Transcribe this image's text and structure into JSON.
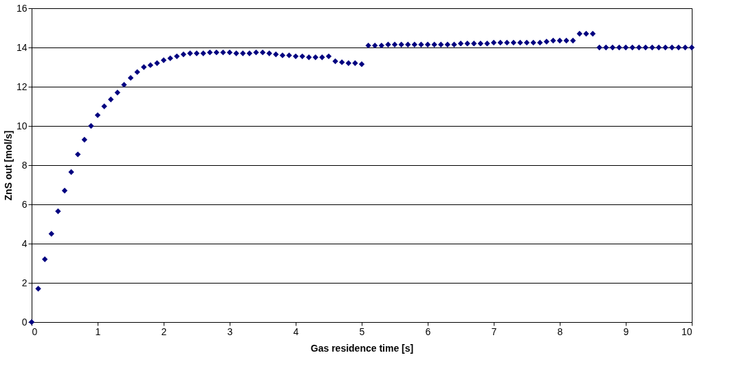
{
  "chart_data": {
    "type": "scatter",
    "xlabel": "Gas residence time [s]",
    "ylabel": "ZnS out  [mol/s]",
    "x": [
      0,
      0.1,
      0.2,
      0.3,
      0.4,
      0.5,
      0.6,
      0.7,
      0.8,
      0.9,
      1.0,
      1.1,
      1.2,
      1.3,
      1.4,
      1.5,
      1.6,
      1.7,
      1.8,
      1.9,
      2.0,
      2.1,
      2.2,
      2.3,
      2.4,
      2.5,
      2.6,
      2.7,
      2.8,
      2.9,
      3.0,
      3.1,
      3.2,
      3.3,
      3.4,
      3.5,
      3.6,
      3.7,
      3.8,
      3.9,
      4.0,
      4.1,
      4.2,
      4.3,
      4.4,
      4.5,
      4.6,
      4.7,
      4.8,
      4.9,
      5.0,
      5.1,
      5.2,
      5.3,
      5.4,
      5.5,
      5.6,
      5.7,
      5.8,
      5.9,
      6.0,
      6.1,
      6.2,
      6.3,
      6.4,
      6.5,
      6.6,
      6.7,
      6.8,
      6.9,
      7.0,
      7.1,
      7.2,
      7.3,
      7.4,
      7.5,
      7.6,
      7.7,
      7.8,
      7.9,
      8.0,
      8.1,
      8.2,
      8.3,
      8.4,
      8.5,
      8.6,
      8.7,
      8.8,
      8.9,
      9.0,
      9.1,
      9.2,
      9.3,
      9.4,
      9.5,
      9.6,
      9.7,
      9.8,
      9.9,
      10.0
    ],
    "series": [
      {
        "color": "#000080",
        "values": [
          0,
          1.7,
          3.2,
          4.5,
          5.65,
          6.7,
          7.65,
          8.55,
          9.3,
          10.0,
          10.55,
          11.0,
          11.35,
          11.7,
          12.1,
          12.45,
          12.75,
          13.0,
          13.1,
          13.2,
          13.35,
          13.45,
          13.55,
          13.65,
          13.7,
          13.7,
          13.7,
          13.75,
          13.75,
          13.75,
          13.75,
          13.7,
          13.7,
          13.7,
          13.75,
          13.75,
          13.7,
          13.65,
          13.6,
          13.6,
          13.55,
          13.55,
          13.5,
          13.5,
          13.5,
          13.55,
          13.3,
          13.25,
          13.2,
          13.2,
          13.15,
          14.1,
          14.1,
          14.1,
          14.15,
          14.15,
          14.15,
          14.15,
          14.15,
          14.15,
          14.15,
          14.15,
          14.15,
          14.15,
          14.15,
          14.2,
          14.2,
          14.2,
          14.2,
          14.2,
          14.25,
          14.25,
          14.25,
          14.25,
          14.25,
          14.25,
          14.25,
          14.25,
          14.3,
          14.35,
          14.35,
          14.35,
          14.35,
          14.7,
          14.7,
          14.7,
          14.0,
          14.0,
          14.0,
          14.0,
          14.0,
          14.0,
          14.0,
          14.0,
          14.0,
          14.0,
          14.0,
          14.0,
          14.0,
          14.0,
          14.0
        ]
      }
    ],
    "xlim": [
      0,
      10
    ],
    "xticks": [
      0,
      1,
      2,
      3,
      4,
      5,
      6,
      7,
      8,
      9,
      10
    ],
    "ylim": [
      0,
      16
    ],
    "yticks": [
      0,
      2,
      4,
      6,
      8,
      10,
      12,
      14,
      16
    ],
    "grid": "y",
    "marker": "diamond"
  }
}
